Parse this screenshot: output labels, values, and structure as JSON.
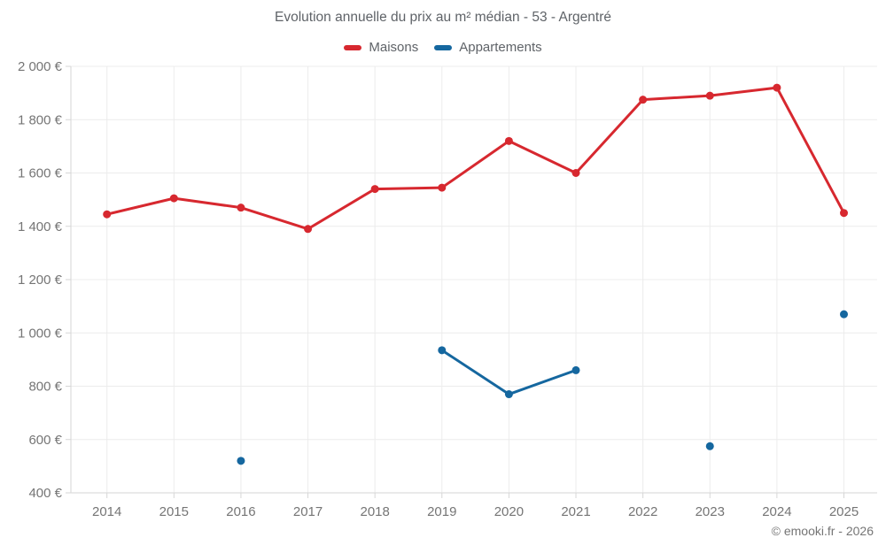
{
  "title": "Evolution annuelle du prix au m² médian - 53 - Argentré",
  "copyright": "© emooki.fr - 2026",
  "colors": {
    "maisons": "#d7282f",
    "appartements": "#15679f",
    "grid": "#ececec",
    "axis": "#d6d6d6",
    "tick_text": "#757575",
    "title_text": "#5f6368"
  },
  "legend": {
    "items": [
      {
        "label": "Maisons",
        "color": "#d7282f"
      },
      {
        "label": "Appartements",
        "color": "#15679f"
      }
    ]
  },
  "chart_data": {
    "type": "line",
    "title": "Evolution annuelle du prix au m² médian - 53 - Argentré",
    "xlabel": "",
    "ylabel": "",
    "x": [
      2014,
      2015,
      2016,
      2017,
      2018,
      2019,
      2020,
      2021,
      2022,
      2023,
      2024,
      2025
    ],
    "series": [
      {
        "name": "Maisons",
        "color": "#d7282f",
        "values": [
          1445,
          1505,
          1470,
          1390,
          1540,
          1545,
          1720,
          1600,
          1875,
          1890,
          1920,
          1450
        ]
      },
      {
        "name": "Appartements",
        "color": "#15679f",
        "values": [
          null,
          null,
          520,
          null,
          null,
          935,
          770,
          860,
          null,
          575,
          null,
          1070
        ]
      }
    ],
    "ylim": [
      400,
      2000
    ],
    "ytick_step": 200,
    "y_unit": "€",
    "grid": true,
    "legend_position": "top"
  }
}
